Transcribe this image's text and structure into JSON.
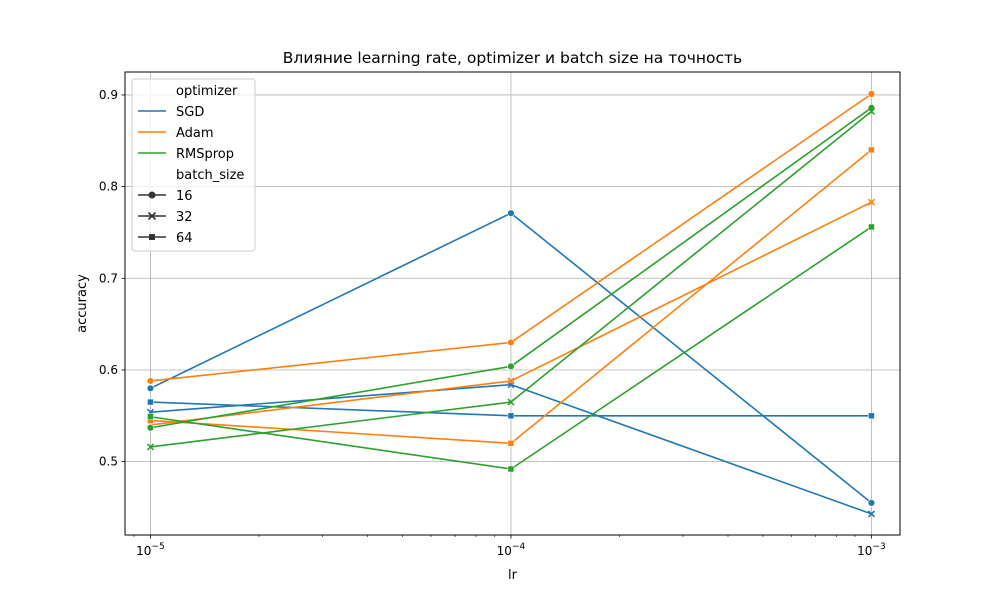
{
  "chart_data": {
    "type": "line",
    "title": "Влияние learning rate, optimizer и batch size на точность",
    "xlabel": "lr",
    "ylabel": "accuracy",
    "xscale": "log",
    "xlim": [
      8.5e-06,
      0.0012
    ],
    "ylim": [
      0.42,
      0.925
    ],
    "x": [
      1e-05,
      0.0001,
      0.001
    ],
    "x_tick_labels": [
      "10^-5",
      "10^-4",
      "10^-3"
    ],
    "y_ticks": [
      0.5,
      0.6,
      0.7,
      0.8,
      0.9
    ],
    "y_tick_labels": [
      "0.5",
      "0.6",
      "0.7",
      "0.8",
      "0.9"
    ],
    "grid": true,
    "legend_position": "top-left",
    "legend": {
      "hue_title": "optimizer",
      "style_title": "batch_size",
      "hue_entries": [
        "SGD",
        "Adam",
        "RMSprop"
      ],
      "style_entries": [
        "16",
        "32",
        "64"
      ]
    },
    "colors": {
      "SGD": "#1f77b4",
      "Adam": "#ff7f0e",
      "RMSprop": "#2ca02c",
      "grid": "#b0b0b0"
    },
    "series": [
      {
        "optimizer": "SGD",
        "batch_size": "16",
        "marker": "circle",
        "values": [
          0.58,
          0.771,
          0.455
        ]
      },
      {
        "optimizer": "SGD",
        "batch_size": "32",
        "marker": "x",
        "values": [
          0.554,
          0.584,
          0.443
        ]
      },
      {
        "optimizer": "SGD",
        "batch_size": "64",
        "marker": "square",
        "values": [
          0.565,
          0.55,
          0.55
        ]
      },
      {
        "optimizer": "Adam",
        "batch_size": "16",
        "marker": "circle",
        "values": [
          0.588,
          0.63,
          0.901
        ]
      },
      {
        "optimizer": "Adam",
        "batch_size": "32",
        "marker": "x",
        "values": [
          0.54,
          0.588,
          0.783
        ]
      },
      {
        "optimizer": "Adam",
        "batch_size": "64",
        "marker": "square",
        "values": [
          0.545,
          0.52,
          0.84
        ]
      },
      {
        "optimizer": "RMSprop",
        "batch_size": "16",
        "marker": "circle",
        "values": [
          0.537,
          0.604,
          0.886
        ]
      },
      {
        "optimizer": "RMSprop",
        "batch_size": "32",
        "marker": "x",
        "values": [
          0.516,
          0.565,
          0.882
        ]
      },
      {
        "optimizer": "RMSprop",
        "batch_size": "64",
        "marker": "square",
        "values": [
          0.549,
          0.492,
          0.756
        ]
      }
    ]
  }
}
